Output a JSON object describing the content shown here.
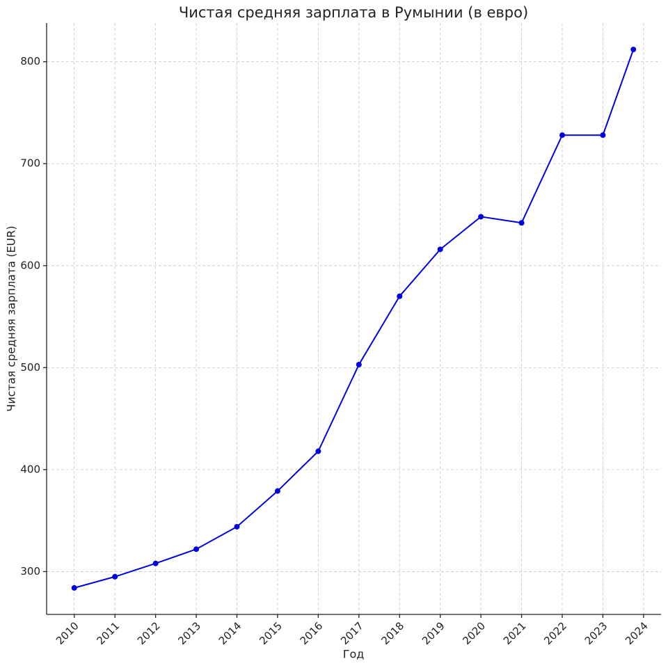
{
  "chart_data": {
    "type": "line",
    "title": "Чистая средняя зарплата в Румынии (в евро)",
    "x_label": "Год",
    "y_label": "Чистая средняя зарплата (EUR)",
    "x": [
      2010,
      2011,
      2012,
      2013,
      2014,
      2015,
      2016,
      2017,
      2018,
      2019,
      2020,
      2021,
      2022,
      2023,
      2023.75
    ],
    "series": [
      {
        "name": "Чистая средняя зарплата",
        "color": "#0000dd",
        "values": [
          284,
          295,
          308,
          322,
          344,
          379,
          418,
          503,
          570,
          616,
          648,
          642,
          728,
          728,
          812
        ]
      }
    ],
    "xlim": [
      2009.32,
      2024.43
    ],
    "ylim": [
      258,
      838
    ],
    "xticks": [
      2010,
      2011,
      2012,
      2013,
      2014,
      2015,
      2016,
      2017,
      2018,
      2019,
      2020,
      2021,
      2022,
      2023,
      2024
    ],
    "yticks": [
      300,
      400,
      500,
      600,
      700,
      800
    ],
    "grid": true
  }
}
